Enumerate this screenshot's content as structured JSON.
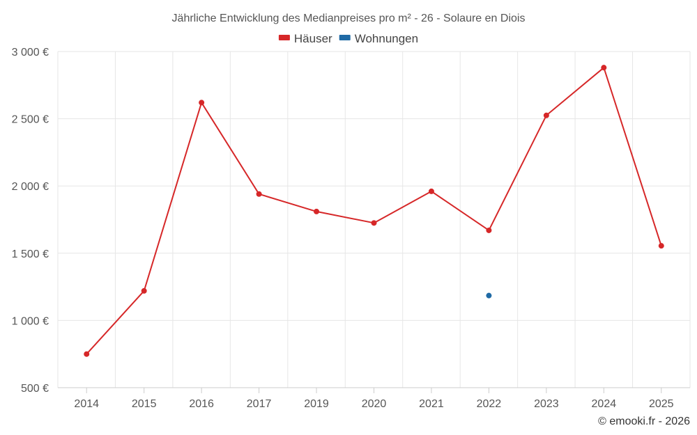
{
  "chart_data": {
    "type": "line",
    "title": "Jährliche Entwicklung des Medianpreises pro m² - 26 - Solaure en Diois",
    "categories": [
      "2014",
      "2015",
      "2016",
      "2017",
      "2019",
      "2020",
      "2021",
      "2022",
      "2023",
      "2024",
      "2025"
    ],
    "series": [
      {
        "name": "Häuser",
        "color": "#d62728",
        "values": [
          750,
          1220,
          2620,
          1940,
          1810,
          1725,
          1960,
          1670,
          2525,
          2880,
          1555
        ]
      },
      {
        "name": "Wohnungen",
        "color": "#1f6aa5",
        "values": [
          null,
          null,
          null,
          null,
          null,
          null,
          null,
          1185,
          null,
          null,
          null
        ]
      }
    ],
    "ylim": [
      500,
      3000
    ],
    "yticks": [
      500,
      1000,
      1500,
      2000,
      2500,
      3000
    ],
    "ytick_labels": [
      "500 €",
      "1 000 €",
      "1 500 €",
      "2 000 €",
      "2 500 €",
      "3 000 €"
    ],
    "legend_position": "top-center",
    "grid": true
  },
  "credit": "© emooki.fr - 2026"
}
